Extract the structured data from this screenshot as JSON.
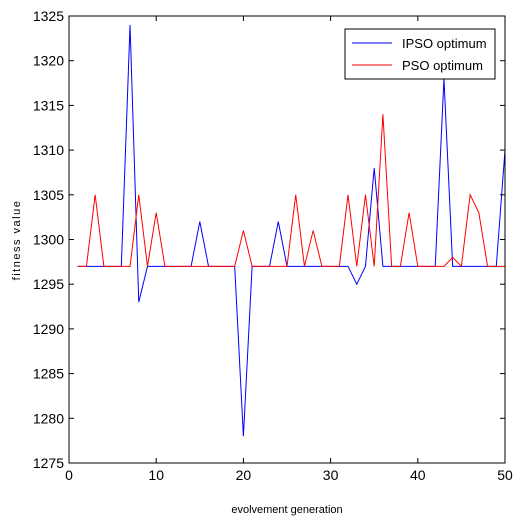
{
  "chart_data": {
    "type": "line",
    "xlabel": "evolvement generation",
    "ylabel": "fitness value",
    "xlim": [
      0,
      50
    ],
    "ylim": [
      1275,
      1325
    ],
    "xticks": [
      0,
      10,
      20,
      30,
      40,
      50
    ],
    "yticks": [
      1275,
      1280,
      1285,
      1290,
      1295,
      1300,
      1305,
      1310,
      1315,
      1320,
      1325
    ],
    "grid": false,
    "legend_position": "top-right",
    "series": [
      {
        "name": "IPSO optimum",
        "color": "#0000ff",
        "x": [
          1,
          2,
          3,
          4,
          5,
          6,
          7,
          8,
          9,
          10,
          11,
          12,
          13,
          14,
          15,
          16,
          17,
          18,
          19,
          20,
          21,
          22,
          23,
          24,
          25,
          26,
          27,
          28,
          29,
          30,
          31,
          32,
          33,
          34,
          35,
          36,
          37,
          38,
          39,
          40,
          41,
          42,
          43,
          44,
          45,
          46,
          47,
          48,
          49,
          50
        ],
        "y": [
          1297,
          1297,
          1297,
          1297,
          1297,
          1297,
          1324,
          1293,
          1297,
          1297,
          1297,
          1297,
          1297,
          1297,
          1302,
          1297,
          1297,
          1297,
          1297,
          1278,
          1297,
          1297,
          1297,
          1302,
          1297,
          1297,
          1297,
          1297,
          1297,
          1297,
          1297,
          1297,
          1295,
          1297,
          1308,
          1297,
          1297,
          1297,
          1297,
          1297,
          1297,
          1297,
          1318,
          1297,
          1297,
          1297,
          1297,
          1297,
          1297,
          1310
        ]
      },
      {
        "name": "PSO optimum",
        "color": "#ff0000",
        "x": [
          1,
          2,
          3,
          4,
          5,
          6,
          7,
          8,
          9,
          10,
          11,
          12,
          13,
          14,
          15,
          16,
          17,
          18,
          19,
          20,
          21,
          22,
          23,
          24,
          25,
          26,
          27,
          28,
          29,
          30,
          31,
          32,
          33,
          34,
          35,
          36,
          37,
          38,
          39,
          40,
          41,
          42,
          43,
          44,
          45,
          46,
          47,
          48,
          49,
          50
        ],
        "y": [
          1297,
          1297,
          1305,
          1297,
          1297,
          1297,
          1297,
          1305,
          1297,
          1303,
          1297,
          1297,
          1297,
          1297,
          1297,
          1297,
          1297,
          1297,
          1297,
          1301,
          1297,
          1297,
          1297,
          1297,
          1297,
          1305,
          1297,
          1301,
          1297,
          1297,
          1297,
          1305,
          1297,
          1305,
          1297,
          1314,
          1297,
          1297,
          1303,
          1297,
          1297,
          1297,
          1297,
          1298,
          1297,
          1305,
          1303,
          1297,
          1297,
          1297
        ]
      }
    ]
  }
}
